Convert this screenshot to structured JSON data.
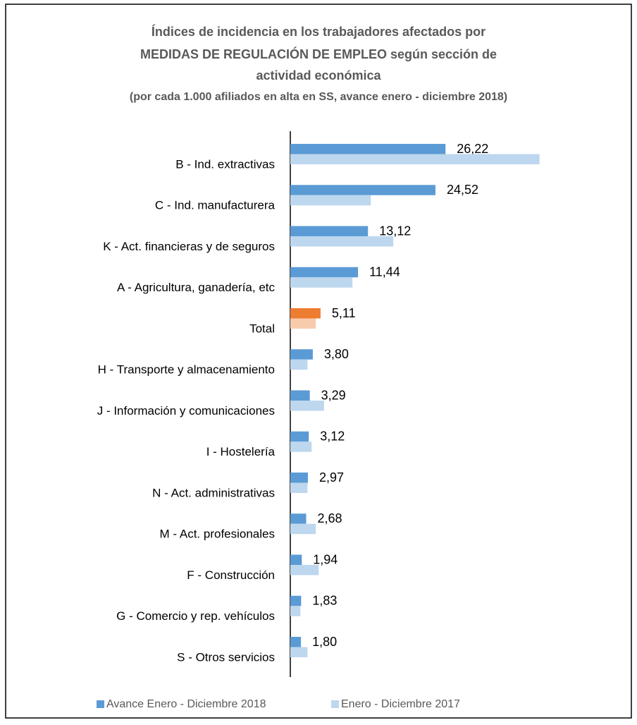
{
  "chart_data": {
    "type": "bar",
    "orientation": "horizontal",
    "title": [
      "Índices de incidencia en los trabajadores afectados por",
      "MEDIDAS DE REGULACIÓN DE EMPLEO según sección de",
      "actividad económica"
    ],
    "subtitle": "(por cada 1.000 afiliados en alta en SS, avance enero - diciembre 2018)",
    "categories": [
      "B - Ind. extractivas",
      "C - Ind. manufacturera",
      "K - Act. financieras y de seguros",
      "A - Agricultura, ganadería, etc",
      "Total",
      "H - Transporte y almacenamiento",
      "J - Información y comunicaciones",
      "I - Hostelería",
      "N - Act. administrativas",
      "M - Act. profesionales",
      "F - Construcción",
      "G - Comercio y rep. vehículos",
      "S - Otros servicios"
    ],
    "highlight_category": "Total",
    "series": [
      {
        "name": "Avance Enero - Diciembre 2018",
        "color": "#5b9bd5",
        "highlight_color": "#ed7d31",
        "values": [
          26.22,
          24.52,
          13.12,
          11.44,
          5.11,
          3.8,
          3.29,
          3.12,
          2.97,
          2.68,
          1.94,
          1.83,
          1.8
        ],
        "value_labels": [
          "26,22",
          "24,52",
          "13,12",
          "11,44",
          "5,11",
          "3,80",
          "3,29",
          "3,12",
          "2,97",
          "2,68",
          "1,94",
          "1,83",
          "1,80"
        ]
      },
      {
        "name": "Enero - Diciembre 2017",
        "color": "#bdd7ee",
        "highlight_color": "#f8cbad",
        "values": [
          42.1,
          13.6,
          17.4,
          10.5,
          4.3,
          2.9,
          5.7,
          3.6,
          2.9,
          4.3,
          4.8,
          1.7,
          2.9
        ]
      }
    ],
    "xlim": [
      0,
      45
    ],
    "legend": "bottom"
  }
}
